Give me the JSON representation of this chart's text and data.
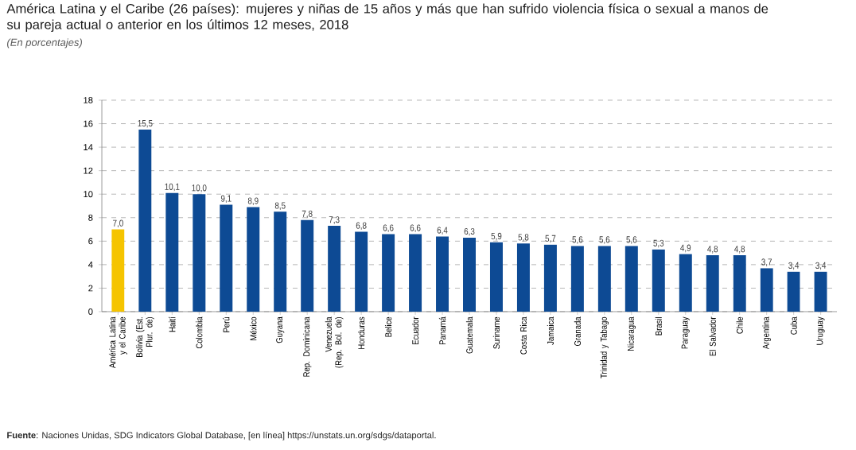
{
  "chart_data": {
    "type": "bar",
    "title": "América Latina y el Caribe (26 países): mujeres y niñas de 15 años y más que han sufrido violencia física o sexual a manos de su pareja actual o anterior en los últimos 12 meses, 2018",
    "subtitle": "(En porcentajes)",
    "categories": [
      "América Latina y el Caribe",
      "Bolivia (Est. Plur. de)",
      "Haití",
      "Colombia",
      "Perú",
      "México",
      "Guyana",
      "Rep. Dominicana",
      "Venezuela (Rep. Bol. de)",
      "Honduras",
      "Belice",
      "Ecuador",
      "Panamá",
      "Guatemala",
      "Suriname",
      "Costa Rica",
      "Jamaica",
      "Granada",
      "Trinidad y Tabago",
      "Nicaragua",
      "Brasil",
      "Paraguay",
      "El Salvador",
      "Chile",
      "Argentina",
      "Cuba",
      "Uruguay"
    ],
    "values": [
      7.0,
      15.5,
      10.1,
      10.0,
      9.1,
      8.9,
      8.5,
      7.8,
      7.3,
      6.8,
      6.6,
      6.6,
      6.4,
      6.3,
      5.9,
      5.8,
      5.7,
      5.6,
      5.6,
      5.6,
      5.3,
      4.9,
      4.8,
      4.8,
      3.7,
      3.4,
      3.4
    ],
    "value_labels": [
      "7,0",
      "15,5",
      "10,1",
      "10,0",
      "9,1",
      "8,9",
      "8,5",
      "7,8",
      "7,3",
      "6,8",
      "6,6",
      "6,6",
      "6,4",
      "6,3",
      "5,9",
      "5,8",
      "5,7",
      "5,6",
      "5,6",
      "5,6",
      "5,3",
      "4,9",
      "4,8",
      "4,8",
      "3,7",
      "3,4",
      "3,4"
    ],
    "colors": [
      "#f5c400",
      "#0d4a94",
      "#0d4a94",
      "#0d4a94",
      "#0d4a94",
      "#0d4a94",
      "#0d4a94",
      "#0d4a94",
      "#0d4a94",
      "#0d4a94",
      "#0d4a94",
      "#0d4a94",
      "#0d4a94",
      "#0d4a94",
      "#0d4a94",
      "#0d4a94",
      "#0d4a94",
      "#0d4a94",
      "#0d4a94",
      "#0d4a94",
      "#0d4a94",
      "#0d4a94",
      "#0d4a94",
      "#0d4a94",
      "#0d4a94",
      "#0d4a94",
      "#0d4a94"
    ],
    "ylim": [
      0,
      18
    ],
    "yticks": [
      0,
      2,
      4,
      6,
      8,
      10,
      12,
      14,
      16,
      18
    ],
    "grid": "y",
    "annotations": [
      "**Fuente**: Naciones Unidas, SDG Indicators Global Database, [en línea] https://unstats.un.org/sdgs/dataportal."
    ]
  }
}
